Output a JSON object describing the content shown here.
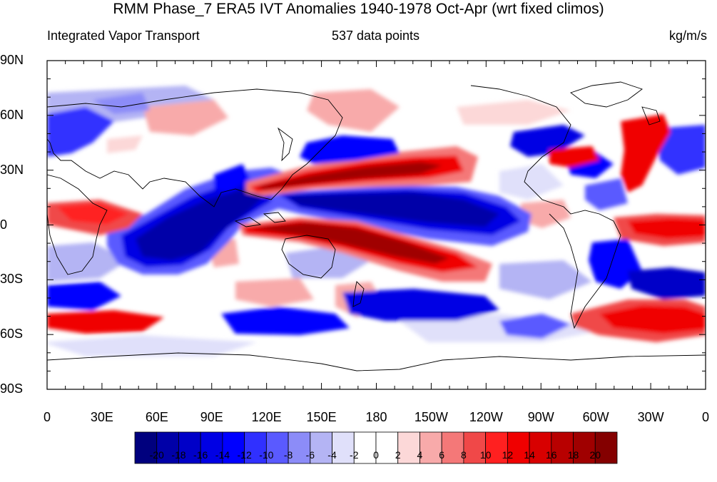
{
  "title": "RMM Phase_7 ERA5 IVT Anomalies 1940-1978 Oct-Apr (wrt fixed climos)",
  "subtitle_left": "Integrated Vapor Transport",
  "subtitle_center": "537 data points",
  "subtitle_right": "kg/m/s",
  "lat_labels": [
    "90N",
    "60N",
    "30N",
    "0",
    "30S",
    "60S",
    "90S"
  ],
  "lon_labels": [
    "0",
    "30E",
    "60E",
    "90E",
    "120E",
    "150E",
    "180",
    "150W",
    "120W",
    "90W",
    "60W",
    "30W",
    "0"
  ],
  "colorbar": {
    "labels": [
      "-20",
      "-18",
      "-16",
      "-14",
      "-12",
      "-10",
      "-8",
      "-6",
      "-4",
      "-2",
      "0",
      "2",
      "4",
      "6",
      "8",
      "10",
      "12",
      "14",
      "16",
      "18",
      "20"
    ],
    "colors": [
      "#00007e",
      "#0000a8",
      "#0000c8",
      "#0000e4",
      "#0000ff",
      "#3030ff",
      "#5a5aff",
      "#8c8cf8",
      "#b4b4f4",
      "#e0e0fa",
      "#ffffff",
      "#ffffff",
      "#fcd8d8",
      "#f8aaaa",
      "#f47878",
      "#f04848",
      "#ff2020",
      "#f00000",
      "#d80000",
      "#b80000",
      "#a00000",
      "#840000"
    ]
  }
}
